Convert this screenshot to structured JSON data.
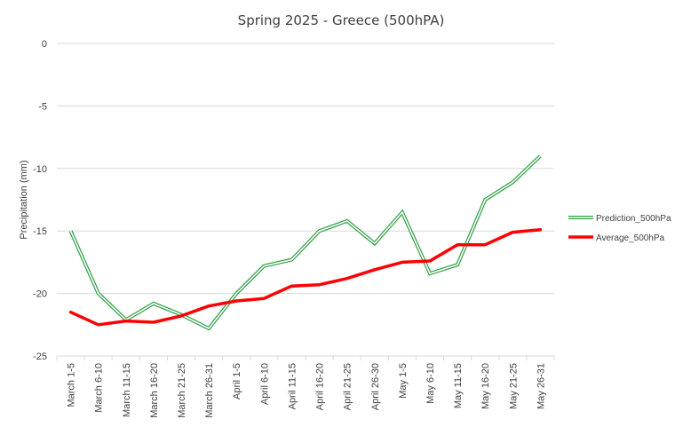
{
  "chart_data": {
    "type": "line",
    "title": "Spring 2025 - Greece (500hPA)",
    "xlabel": "",
    "ylabel": "Precipitation (mm)",
    "ylim": [
      -25,
      0
    ],
    "yticks": [
      0,
      -5,
      -10,
      -15,
      -20,
      -25
    ],
    "grid": true,
    "legend_position": "right",
    "categories": [
      "March 1-5",
      "March 6-10",
      "March 11-15",
      "March 16-20",
      "March 21-25",
      "March 26-31",
      "April 1-5",
      "April 6-10",
      "April 11-15",
      "April 16-20",
      "April 21-25",
      "April 26-30",
      "May 1-5",
      "May 6-10",
      "May 11-15",
      "May 16-20",
      "May 21-25",
      "May 26-31"
    ],
    "series": [
      {
        "name": "Prediction_500hPa",
        "color": "#2e9e44",
        "style": "double",
        "values": [
          -15.0,
          -20.0,
          -22.1,
          -20.8,
          -21.7,
          -22.8,
          -20.0,
          -17.8,
          -17.3,
          -15.0,
          -14.2,
          -16.0,
          -13.5,
          -18.4,
          -17.7,
          -12.5,
          -11.1,
          -9.0
        ]
      },
      {
        "name": "Average_500hPa",
        "color": "#ff0000",
        "style": "solid",
        "values": [
          -21.5,
          -22.5,
          -22.2,
          -22.3,
          -21.8,
          -21.0,
          -20.6,
          -20.4,
          -19.4,
          -19.3,
          -18.8,
          -18.1,
          -17.5,
          -17.4,
          -16.1,
          -16.1,
          -15.1,
          -14.9
        ]
      }
    ]
  }
}
